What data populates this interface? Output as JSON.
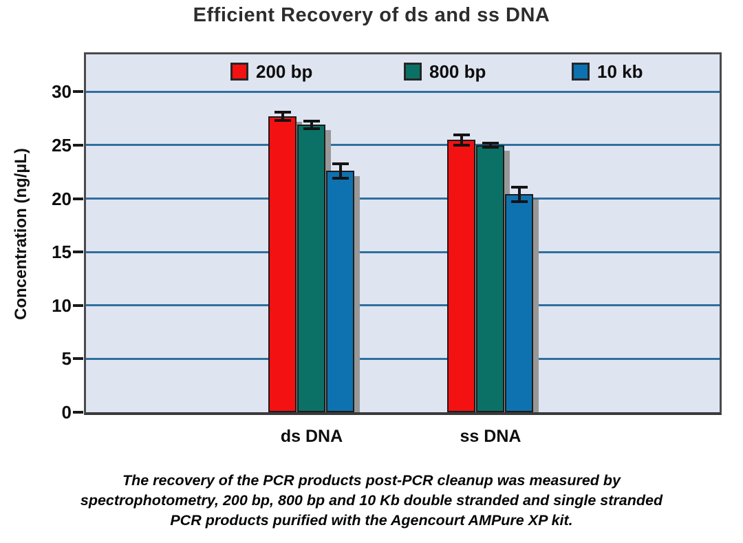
{
  "chart_data": {
    "type": "bar",
    "title": "Efficient Recovery of ds and ss DNA",
    "ylabel": "Concentration (ng/µL)",
    "xlabel": "",
    "categories": [
      "ds DNA",
      "ss DNA"
    ],
    "series": [
      {
        "name": "200 bp",
        "color": "#f31111",
        "values": [
          27.7,
          25.5
        ],
        "errors": [
          0.5,
          0.6
        ]
      },
      {
        "name": "800 bp",
        "color": "#0b7166",
        "values": [
          26.9,
          25.0
        ],
        "errors": [
          0.5,
          0.3
        ]
      },
      {
        "name": "10 kb",
        "color": "#0e72b0",
        "values": [
          22.6,
          20.4
        ],
        "errors": [
          0.8,
          0.8
        ]
      }
    ],
    "yticks": [
      0,
      5,
      10,
      15,
      20,
      25,
      30
    ],
    "ylim": [
      0,
      33.5
    ],
    "grid": "horizontal-only",
    "legend_position": "top-inside",
    "error_bars": true
  },
  "caption": {
    "lines": [
      "The recovery of the PCR products post-PCR cleanup was measured by",
      "spectrophotometry, 200 bp, 800 bp and 10 Kb double stranded and single stranded",
      "PCR products purified with the Agencourt AMPure XP kit."
    ]
  },
  "colors": {
    "plot_background": "#dfe4f1",
    "gridline": "#2e6f9e",
    "frame": "#4a4a4a",
    "axis": "#3a3a3a",
    "bar_outline": "#1c1c1c",
    "bar_shadow": "#989898",
    "error_bar": "#141414",
    "tick": "#1a1a1a",
    "title_text": "#2d2d2d"
  }
}
